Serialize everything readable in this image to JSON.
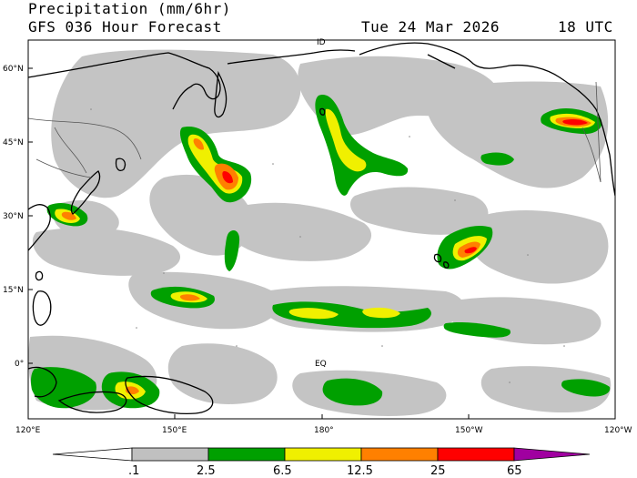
{
  "header": {
    "title": "Precipitation (mm/6hr)",
    "model": "GFS 036 Hour Forecast",
    "date": "Tue 24 Mar 2026",
    "time": "18 UTC"
  },
  "axes": {
    "lat_labels": [
      "60°N",
      "45°N",
      "30°N",
      "15°N",
      "0°"
    ],
    "lon_labels": [
      "120°E",
      "150°E",
      "180°",
      "150°W",
      "120°W"
    ],
    "map_annotations": [
      "ID",
      "EQ"
    ]
  },
  "colorbar": {
    "breaks": [
      ".1",
      "2.5",
      "6.5",
      "12.5",
      "25",
      "65"
    ],
    "colors": [
      "#ffffff",
      "#c0c0c0",
      "#00a000",
      "#f0f000",
      "#ff8000",
      "#ff0000",
      "#a000a0"
    ]
  },
  "colors": {
    "land_outline": "#000000",
    "political_borders": "#555555",
    "ocean": "#ffffff"
  }
}
